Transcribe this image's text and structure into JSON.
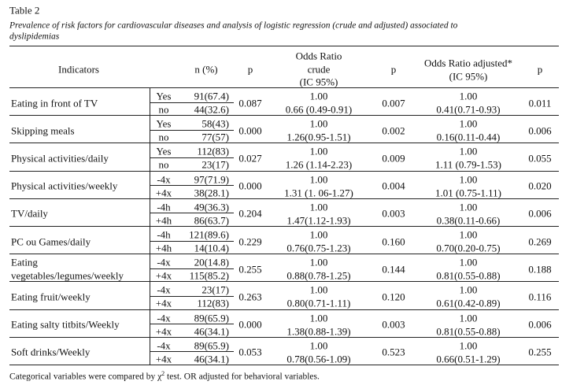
{
  "title": "Table 2",
  "caption": [
    "Prevalence of risk factors for cardiovascular diseases and analysis of logistic regression (crude and adjusted) associated to",
    "dyslipidemias"
  ],
  "header": {
    "indicators": "Indicators",
    "n": "n (%)",
    "p_chi": "p",
    "crude": [
      "Odds Ratio",
      "crude",
      "(IC 95%)"
    ],
    "p_crude": "p",
    "adjusted": [
      "Odds Ratio adjusted*",
      "(IC 95%)"
    ],
    "p_adjusted": "p"
  },
  "rows": [
    {
      "indicator": [
        "Eating in front of TV"
      ],
      "levels": [
        {
          "label": "Yes",
          "n": "91(67.4)"
        },
        {
          "label": "no",
          "n": "44(32.6)"
        }
      ],
      "p_chi": "0.087",
      "crude": [
        "1.00",
        "0.66 (0.49-0.91)"
      ],
      "p_crude": "0.007",
      "adjusted": [
        "1.00",
        "0.41(0.71-0.93)"
      ],
      "p_adjusted": "0.011"
    },
    {
      "indicator": [
        "Skipping meals"
      ],
      "levels": [
        {
          "label": "Yes",
          "n": "58(43)"
        },
        {
          "label": "no",
          "n": "77(57)"
        }
      ],
      "p_chi": "0.000",
      "crude": [
        "1.00",
        "1.26(0.95-1.51)"
      ],
      "p_crude": "0.002",
      "adjusted": [
        "1.00",
        "0.16(0.11-0.44)"
      ],
      "p_adjusted": "0.006"
    },
    {
      "indicator": [
        "Physical activities/daily"
      ],
      "levels": [
        {
          "label": "Yes",
          "n": "112(83)"
        },
        {
          "label": "no",
          "n": "23(17)"
        }
      ],
      "p_chi": "0.027",
      "crude": [
        "1.00",
        "1.26 (1.14-2.23)"
      ],
      "p_crude": "0.009",
      "adjusted": [
        "1.00",
        "1.11 (0.79-1.53)"
      ],
      "p_adjusted": "0.055"
    },
    {
      "indicator": [
        "Physical activities/weekly"
      ],
      "levels": [
        {
          "label": "-4x",
          "n": "97(71.9)"
        },
        {
          "label": "+4x",
          "n": "38(28.1)"
        }
      ],
      "p_chi": "0.000",
      "crude": [
        "1.00",
        "1.31 (1. 06-1.27)"
      ],
      "p_crude": "0.004",
      "adjusted": [
        "1.00",
        "1.01 (0.75-1.11)"
      ],
      "p_adjusted": "0.020"
    },
    {
      "indicator": [
        "TV/daily"
      ],
      "levels": [
        {
          "label": "-4h",
          "n": "49(36.3)"
        },
        {
          "label": "+4h",
          "n": "86(63.7)"
        }
      ],
      "p_chi": "0.204",
      "crude": [
        "1.00",
        "1.47(1.12-1.93)"
      ],
      "p_crude": "0.003",
      "adjusted": [
        "1.00",
        "0.38(0.11-0.66)"
      ],
      "p_adjusted": "0.006"
    },
    {
      "indicator": [
        "PC ou Games/daily"
      ],
      "levels": [
        {
          "label": "-4h",
          "n": "121(89.6)"
        },
        {
          "label": "+4h",
          "n": "14(10.4)"
        }
      ],
      "p_chi": "0.229",
      "crude": [
        "1.00",
        "0.76(0.75-1.23)"
      ],
      "p_crude": "0.160",
      "adjusted": [
        "1.00",
        "0.70(0.20-0.75)"
      ],
      "p_adjusted": "0.269"
    },
    {
      "indicator": [
        "Eating",
        "vegetables/legumes/weekly"
      ],
      "levels": [
        {
          "label": "-4x",
          "n": "20(14.8)"
        },
        {
          "label": "+4x",
          "n": "115(85.2)"
        }
      ],
      "p_chi": "0.255",
      "crude": [
        "1.00",
        "0.88(0.78-1.25)"
      ],
      "p_crude": "0.144",
      "adjusted": [
        "1.00",
        "0.81(0.55-0.88)"
      ],
      "p_adjusted": "0.188"
    },
    {
      "indicator": [
        "Eating fruit/weekly"
      ],
      "levels": [
        {
          "label": "-4x",
          "n": "23(17)"
        },
        {
          "label": "+4x",
          "n": "112(83)"
        }
      ],
      "p_chi": "0.263",
      "crude": [
        "1.00",
        "0.80(0.71-1.11)"
      ],
      "p_crude": "0.120",
      "adjusted": [
        "1.00",
        "0.61(0.42-0.89)"
      ],
      "p_adjusted": "0.116"
    },
    {
      "indicator": [
        "Eating salty titbits/Weekly"
      ],
      "levels": [
        {
          "label": "-4x",
          "n": "89(65.9)"
        },
        {
          "label": "+4x",
          "n": "46(34.1)"
        }
      ],
      "p_chi": "0.000",
      "crude": [
        "1.00",
        "1.38(0.88-1.39)"
      ],
      "p_crude": "0.003",
      "adjusted": [
        "1.00",
        "0.81(0.55-0.88)"
      ],
      "p_adjusted": "0.006"
    },
    {
      "indicator": [
        "Soft drinks/Weekly"
      ],
      "levels": [
        {
          "label": "-4x",
          "n": "89(65.9)"
        },
        {
          "label": "+4x",
          "n": "46(34.1)"
        }
      ],
      "p_chi": "0.053",
      "crude": [
        "1.00",
        "0.78(0.56-1.09)"
      ],
      "p_crude": "0.523",
      "adjusted": [
        "1.00",
        "0.66(0.51-1.29)"
      ],
      "p_adjusted": "0.255"
    }
  ],
  "footnote": {
    "before": "Categorical variables were compared by χ",
    "sup": "2",
    "after": " test. OR adjusted for behavioral variables."
  }
}
